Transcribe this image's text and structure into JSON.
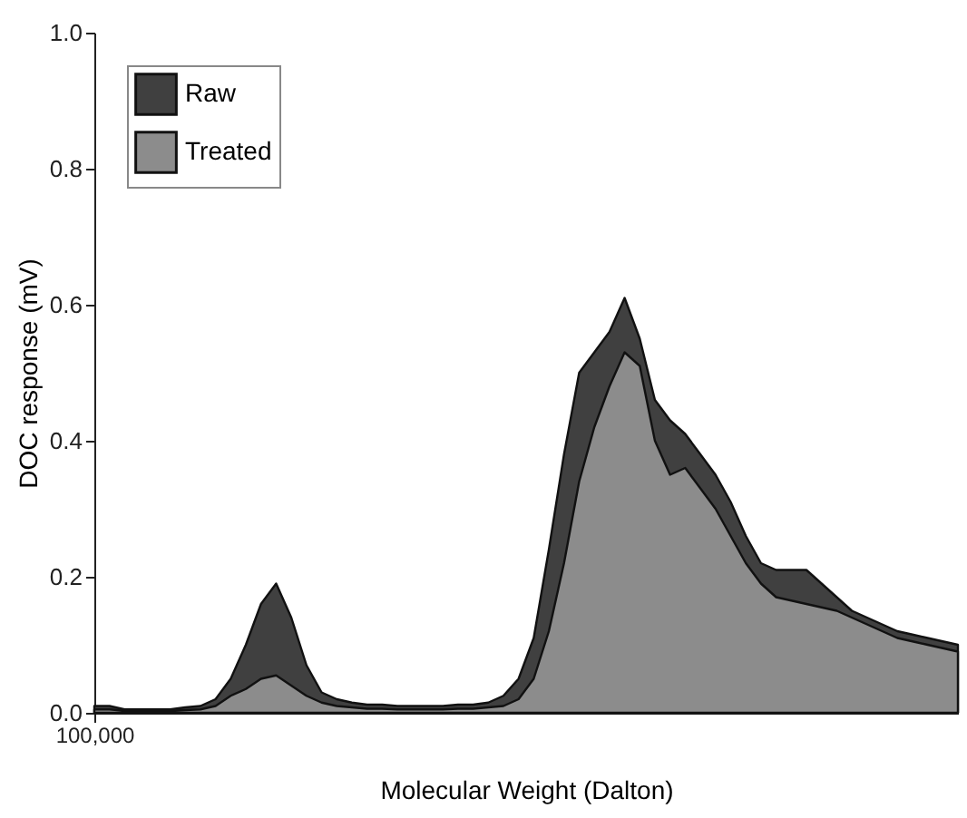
{
  "chart_data": {
    "type": "area",
    "xlabel": "Molecular Weight (Dalton)",
    "ylabel": "DOC response (mV)",
    "categories": [
      "100,000",
      null,
      null,
      null,
      null,
      null,
      null,
      null,
      null,
      null,
      null,
      null,
      null,
      null,
      null,
      null,
      null,
      null,
      null,
      null,
      null,
      null,
      null,
      null,
      null,
      null,
      null,
      null,
      null,
      null,
      null,
      null,
      null,
      null,
      null,
      null,
      null,
      null,
      null,
      null,
      null,
      null,
      null,
      null,
      null,
      null,
      null,
      null,
      null,
      null,
      null,
      null,
      null,
      null,
      null,
      null,
      null,
      null
    ],
    "series": [
      {
        "name": "Raw",
        "color": "#404040",
        "values": [
          0.01,
          0.01,
          0.005,
          0.005,
          0.005,
          0.005,
          0.008,
          0.01,
          0.02,
          0.05,
          0.1,
          0.16,
          0.19,
          0.14,
          0.07,
          0.03,
          0.02,
          0.015,
          0.012,
          0.012,
          0.01,
          0.01,
          0.01,
          0.01,
          0.012,
          0.012,
          0.015,
          0.025,
          0.05,
          0.11,
          0.24,
          0.38,
          0.5,
          0.53,
          0.56,
          0.61,
          0.55,
          0.46,
          0.43,
          0.41,
          0.38,
          0.35,
          0.31,
          0.26,
          0.22,
          0.21,
          0.21,
          0.21,
          0.19,
          0.17,
          0.15,
          0.14,
          0.13,
          0.12,
          0.115,
          0.11,
          0.105,
          0.1
        ]
      },
      {
        "name": "Treated",
        "color": "#8c8c8c",
        "values": [
          0.005,
          0.005,
          0.003,
          0.003,
          0.003,
          0.003,
          0.004,
          0.005,
          0.01,
          0.025,
          0.035,
          0.05,
          0.055,
          0.04,
          0.025,
          0.015,
          0.01,
          0.008,
          0.006,
          0.006,
          0.005,
          0.005,
          0.005,
          0.005,
          0.006,
          0.006,
          0.008,
          0.01,
          0.02,
          0.05,
          0.12,
          0.22,
          0.34,
          0.42,
          0.48,
          0.53,
          0.51,
          0.4,
          0.35,
          0.36,
          0.33,
          0.3,
          0.26,
          0.22,
          0.19,
          0.17,
          0.165,
          0.16,
          0.155,
          0.15,
          0.14,
          0.13,
          0.12,
          0.11,
          0.105,
          0.1,
          0.095,
          0.09
        ]
      }
    ],
    "ylim": [
      0,
      1.0
    ],
    "yticks": [
      {
        "value": 0,
        "label": "0.0"
      },
      {
        "value": 0.2,
        "label": "0.2"
      },
      {
        "value": 0.4,
        "label": "0.4"
      },
      {
        "value": 0.6,
        "label": "0.6"
      },
      {
        "value": 0.8,
        "label": "0.8"
      },
      {
        "value": 1.0,
        "label": "1.0"
      }
    ],
    "grid": false,
    "legend": "top left"
  }
}
